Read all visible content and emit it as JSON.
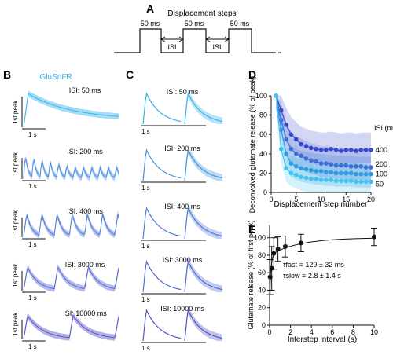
{
  "panels": {
    "A": "A",
    "B": "B",
    "C": "C",
    "D": "D",
    "E": "E"
  },
  "panel_a": {
    "title": "Displacement steps",
    "step_label": "50 ms",
    "isi_label": "ISI"
  },
  "panel_b": {
    "title": "iGluSnFR",
    "ylabel": "1st peak",
    "scale": "1 s",
    "traces": [
      {
        "label": "ISI: 50 ms",
        "n_peaks": 1
      },
      {
        "label": "ISI: 200 ms",
        "n_peaks": 11
      },
      {
        "label": "ISI: 400 ms",
        "n_peaks": 6
      },
      {
        "label": "ISI: 3000 ms",
        "n_peaks": 3
      },
      {
        "label": "ISI: 10000 ms",
        "n_peaks": 2
      }
    ]
  },
  "panel_c": {
    "scale": "1 s",
    "traces": [
      {
        "label": "ISI: 50 ms"
      },
      {
        "label": "ISI: 200 ms"
      },
      {
        "label": "ISI: 400 ms"
      },
      {
        "label": "ISI: 3000 ms"
      },
      {
        "label": "ISI: 10000 ms"
      }
    ]
  },
  "chart_data": [
    {
      "type": "line",
      "ylabel": "Deconvolved glutamate release (% of peak)",
      "xlabel": "Displacement step number",
      "xlim": [
        0,
        20
      ],
      "ylim": [
        0,
        100
      ],
      "xticks": [
        0,
        5,
        10,
        15,
        20
      ],
      "yticks": [
        0,
        20,
        40,
        60,
        80,
        100
      ],
      "legend_title": "ISI (ms)",
      "colors": {
        "400": "#3a49c9",
        "200": "#3f6fd6",
        "100": "#2f9be0",
        "50": "#3fc5ee"
      },
      "x": [
        1,
        2,
        3,
        4,
        5,
        6,
        7,
        8,
        9,
        10,
        11,
        12,
        13,
        14,
        15,
        16,
        17,
        18,
        19,
        20
      ],
      "series": [
        {
          "name": "400",
          "values": [
            100,
            85,
            70,
            60,
            55,
            50,
            48,
            46,
            45,
            44,
            44,
            45,
            44,
            43,
            44,
            44,
            43,
            44,
            44,
            44
          ]
        },
        {
          "name": "200",
          "values": [
            100,
            75,
            55,
            45,
            40,
            38,
            35,
            33,
            32,
            30,
            30,
            29,
            28,
            28,
            28,
            27,
            27,
            27,
            26,
            26
          ]
        },
        {
          "name": "100",
          "values": [
            100,
            65,
            40,
            30,
            27,
            25,
            24,
            23,
            22,
            22,
            21,
            21,
            20,
            20,
            20,
            20,
            19,
            19,
            19,
            19
          ]
        },
        {
          "name": "50",
          "values": [
            100,
            45,
            25,
            20,
            18,
            16,
            15,
            14,
            14,
            13,
            13,
            13,
            12,
            12,
            12,
            12,
            11,
            11,
            11,
            11
          ]
        }
      ]
    },
    {
      "type": "scatter",
      "ylabel": "Glutamate release (% of first peak)",
      "xlabel": "Interstep interval (s)",
      "xlim": [
        0,
        10
      ],
      "ylim": [
        0,
        115
      ],
      "xticks": [
        0,
        2,
        4,
        6,
        8,
        10
      ],
      "yticks": [
        0,
        20,
        40,
        60,
        80,
        100
      ],
      "points": [
        {
          "x": 0.05,
          "y": 55,
          "err": 20
        },
        {
          "x": 0.2,
          "y": 65,
          "err": 25
        },
        {
          "x": 0.4,
          "y": 82,
          "err": 18
        },
        {
          "x": 0.8,
          "y": 87,
          "err": 14
        },
        {
          "x": 1.5,
          "y": 90,
          "err": 12
        },
        {
          "x": 3,
          "y": 94,
          "err": 10
        },
        {
          "x": 10,
          "y": 101,
          "err": 10
        }
      ],
      "annotations": {
        "tau_fast": "τfast = 129 ± 32 ms",
        "tau_slow": "τslow = 2.8 ± 1.4 s"
      }
    }
  ]
}
